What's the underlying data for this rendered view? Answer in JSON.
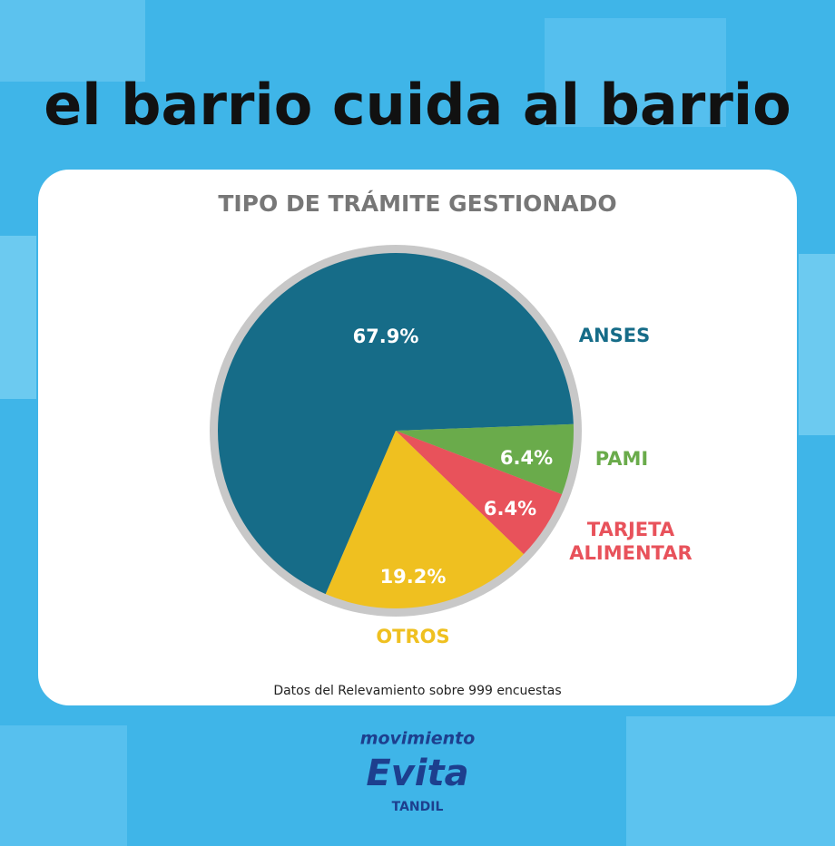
{
  "header": {
    "title": "el barrio cuida al barrio"
  },
  "chart_data": {
    "type": "pie",
    "title": "TIPO DE TRÁMITE GESTIONADO",
    "categories": [
      "ANSES",
      "PAMI",
      "TARJETA ALIMENTAR",
      "OTROS"
    ],
    "values": [
      67.9,
      6.4,
      6.4,
      19.2
    ],
    "value_labels": [
      "67.9%",
      "6.4%",
      "6.4%",
      "19.2%"
    ],
    "colors": [
      "#166c88",
      "#6aab4b",
      "#e8525b",
      "#efc020"
    ],
    "note": "Datos del Relevamiento sobre 999 encuestas"
  },
  "footer": {
    "logo_top": "movimiento",
    "logo_main": "Evita",
    "logo_bottom": "TANDIL"
  }
}
